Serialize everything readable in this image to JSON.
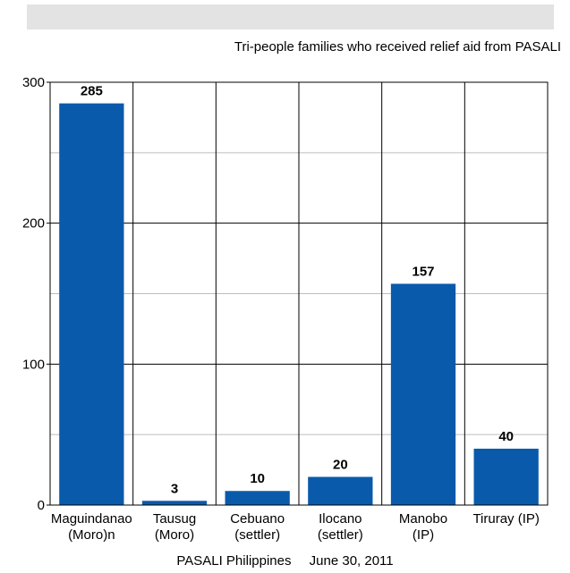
{
  "header": {
    "band_color": "#e3e3e3"
  },
  "chart_data": {
    "type": "bar",
    "title": "Tri-people families who received relief aid from PASALI",
    "categories": [
      [
        "Maguindanao",
        "(Moro)n"
      ],
      [
        "Tausug",
        "(Moro)"
      ],
      [
        "Cebuano",
        "(settler)"
      ],
      [
        "Ilocano",
        "(settler)"
      ],
      [
        "Manobo",
        "(IP)"
      ],
      [
        "Tiruray (IP)"
      ]
    ],
    "values": [
      285,
      3,
      10,
      20,
      157,
      40
    ],
    "data_labels": [
      "285",
      "3",
      "10",
      "20",
      "157",
      "40"
    ],
    "y_ticks": [
      "0",
      "100",
      "200",
      "300"
    ],
    "ylim": [
      0,
      300
    ],
    "grid": true,
    "bar_color": "#0a5aab"
  },
  "footer": {
    "source": "PASALI Philippines",
    "date": "June 30, 2011"
  }
}
